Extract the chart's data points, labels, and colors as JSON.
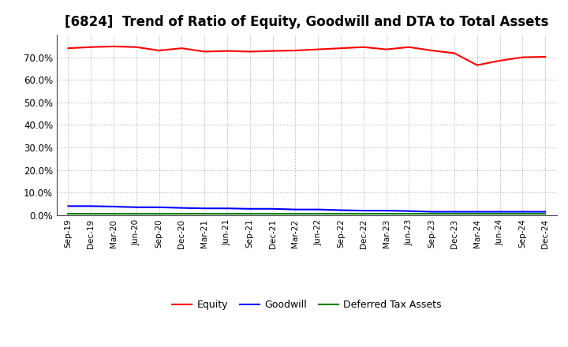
{
  "title": "[6824]  Trend of Ratio of Equity, Goodwill and DTA to Total Assets",
  "x_labels": [
    "Sep-19",
    "Dec-19",
    "Mar-20",
    "Jun-20",
    "Sep-20",
    "Dec-20",
    "Mar-21",
    "Jun-21",
    "Sep-21",
    "Dec-21",
    "Mar-22",
    "Jun-22",
    "Sep-22",
    "Dec-22",
    "Mar-23",
    "Jun-23",
    "Sep-23",
    "Dec-23",
    "Mar-24",
    "Jun-24",
    "Sep-24",
    "Dec-24"
  ],
  "equity": [
    74.0,
    74.5,
    74.8,
    74.5,
    73.0,
    74.0,
    72.5,
    72.8,
    72.5,
    72.8,
    73.0,
    73.5,
    74.0,
    74.5,
    73.5,
    74.5,
    73.0,
    71.8,
    66.5,
    68.5,
    70.0,
    70.2
  ],
  "goodwill": [
    4.0,
    4.0,
    3.8,
    3.5,
    3.5,
    3.2,
    3.0,
    3.0,
    2.8,
    2.8,
    2.5,
    2.5,
    2.2,
    2.0,
    2.0,
    1.8,
    1.5,
    1.5,
    1.5,
    1.5,
    1.5,
    1.5
  ],
  "dta": [
    0.8,
    0.8,
    0.8,
    0.8,
    0.8,
    0.8,
    0.8,
    0.8,
    0.8,
    0.8,
    0.8,
    0.8,
    0.8,
    0.8,
    0.8,
    0.8,
    0.8,
    0.8,
    0.8,
    0.8,
    0.8,
    0.8
  ],
  "equity_color": "#ff0000",
  "goodwill_color": "#0000ff",
  "dta_color": "#008000",
  "ylim": [
    0,
    80
  ],
  "yticks": [
    0,
    10,
    20,
    30,
    40,
    50,
    60,
    70
  ],
  "background_color": "#ffffff",
  "grid_color": "#999999",
  "title_fontsize": 12,
  "legend_labels": [
    "Equity",
    "Goodwill",
    "Deferred Tax Assets"
  ]
}
